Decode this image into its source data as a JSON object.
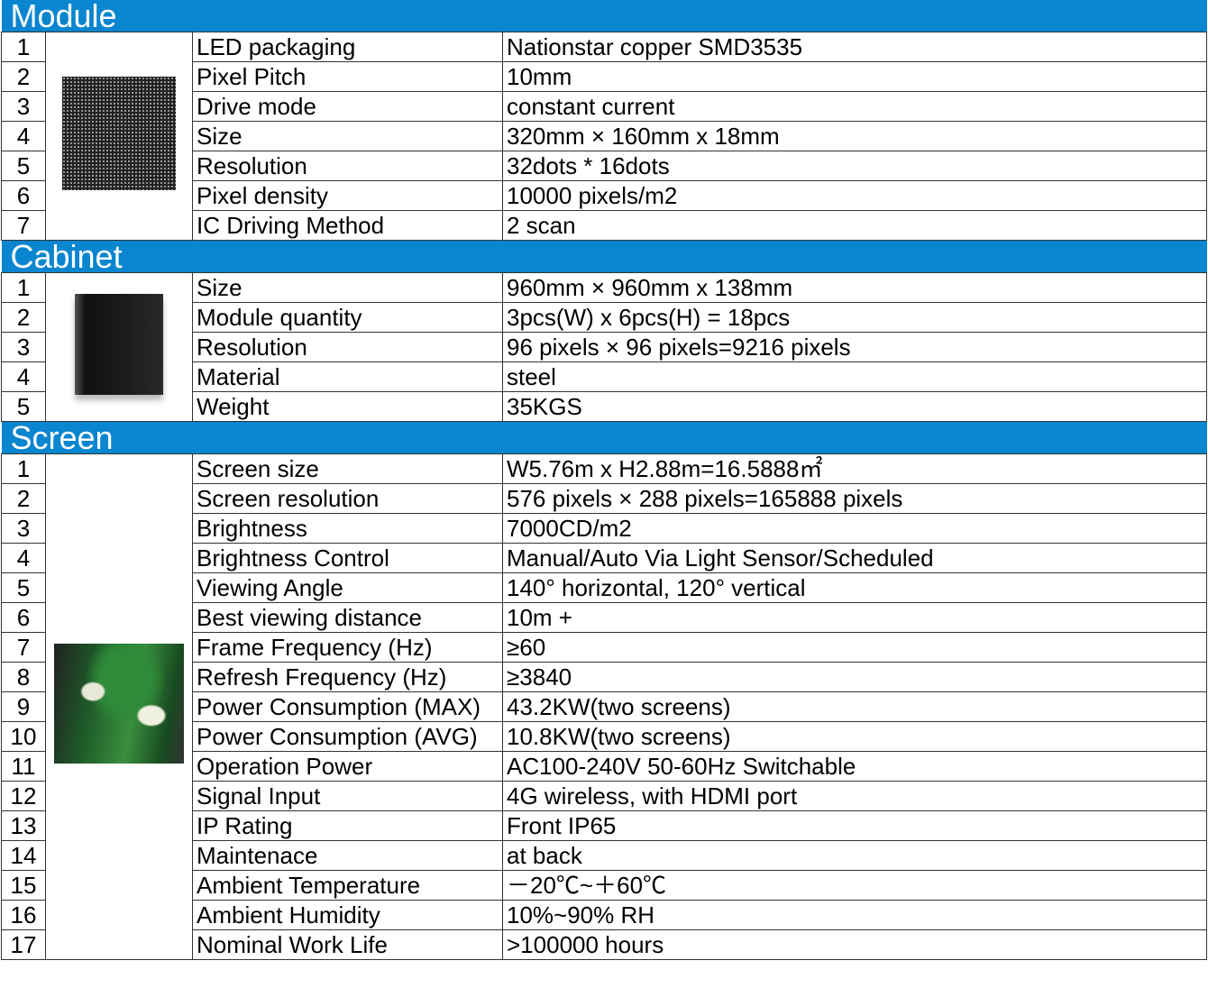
{
  "sections": [
    {
      "title": "Module",
      "image": "led-module-photo",
      "rows": [
        [
          "1",
          "LED packaging",
          "Nationstar copper SMD3535"
        ],
        [
          "2",
          "Pixel Pitch",
          "10mm"
        ],
        [
          "3",
          "Drive mode",
          "constant current"
        ],
        [
          "4",
          "Size",
          "320mm × 160mm x 18mm"
        ],
        [
          "5",
          "Resolution",
          "32dots * 16dots"
        ],
        [
          "6",
          "Pixel density",
          "10000 pixels/m2"
        ],
        [
          "7",
          "IC Driving Method",
          "2 scan"
        ]
      ]
    },
    {
      "title": "Cabinet",
      "image": "cabinet-photo",
      "rows": [
        [
          "1",
          "Size",
          "960mm × 960mm x 138mm"
        ],
        [
          "2",
          "Module quantity",
          "3pcs(W) x 6pcs(H) = 18pcs"
        ],
        [
          "3",
          "Resolution",
          "96 pixels  × 96 pixels=9216 pixels"
        ],
        [
          "4",
          "Material",
          "steel"
        ],
        [
          "5",
          "Weight",
          "35KGS"
        ]
      ]
    },
    {
      "title": "Screen",
      "image": "screen-photo",
      "rows": [
        [
          "1",
          "Screen size",
          "W5.76m x  H2.88m=16.5888㎡"
        ],
        [
          "2",
          "Screen resolution",
          "576 pixels  × 288 pixels=165888 pixels"
        ],
        [
          "3",
          "Brightness",
          "7000CD/m2"
        ],
        [
          "4",
          "Brightness Control",
          "Manual/Auto Via Light Sensor/Scheduled"
        ],
        [
          "5",
          "Viewing Angle",
          "140° horizontal, 120° vertical"
        ],
        [
          "6",
          "Best viewing distance",
          "10m +"
        ],
        [
          "7",
          "Frame Frequency (Hz)",
          "≥60"
        ],
        [
          "8",
          "Refresh Frequency (Hz)",
          "≥3840"
        ],
        [
          "9",
          "Power Consumption (MAX)",
          "43.2KW(two screens)"
        ],
        [
          "10",
          "Power Consumption (AVG)",
          "10.8KW(two screens)"
        ],
        [
          "11",
          "Operation Power",
          "AC100-240V 50-60Hz Switchable"
        ],
        [
          "12",
          "Signal Input",
          "4G wireless, with HDMI port"
        ],
        [
          "13",
          "IP Rating",
          "Front IP65"
        ],
        [
          "14",
          "Maintenace",
          "at back"
        ],
        [
          "15",
          "Ambient Temperature",
          "－20℃~＋60℃"
        ],
        [
          "16",
          "Ambient Humidity",
          "10%~90% RH"
        ],
        [
          "17",
          "Nominal Work Life",
          ">100000 hours"
        ]
      ]
    }
  ],
  "colors": {
    "section_header": "#0a85cf"
  }
}
